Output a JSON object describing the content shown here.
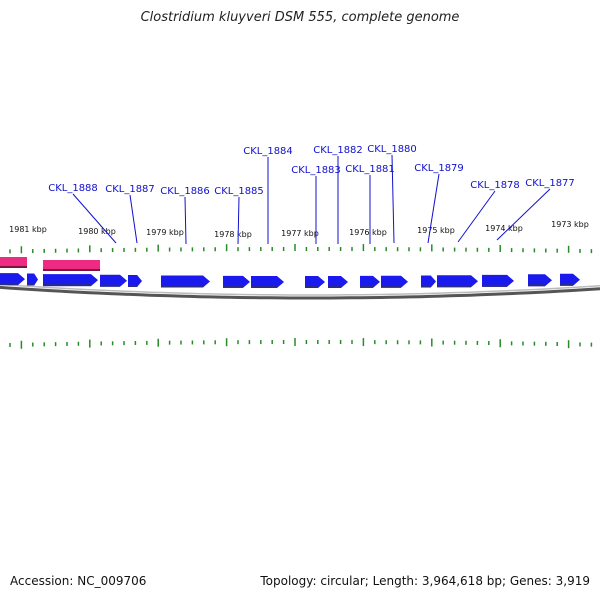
{
  "title": "Clostridium kluyveri DSM 555, complete genome",
  "footer": {
    "accession": "Accession: NC_009706",
    "summary": "Topology: circular; Length: 3,964,618 bp; Genes: 3,919"
  },
  "colors": {
    "forward_gene": "#1a1aee",
    "rna_gene": "#ee2b82",
    "tick": "#2a8a2a",
    "backbone": "#888888",
    "label": "#1010d0"
  },
  "kbp_labels": [
    "1981 kbp",
    "1980 kbp",
    "1979 kbp",
    "1978 kbp",
    "1977 kbp",
    "1976 kbp",
    "1975 kbp",
    "1974 kbp",
    "1973 kbp"
  ],
  "gene_labels": [
    "CKL_1888",
    "CKL_1887",
    "CKL_1886",
    "CKL_1885",
    "CKL_1884",
    "CKL_1883",
    "CKL_1882",
    "CKL_1881",
    "CKL_1880",
    "CKL_1879",
    "CKL_1878",
    "CKL_1877"
  ],
  "legend_icons": [
    "gene-arrow-icon",
    "rna-block-icon"
  ]
}
